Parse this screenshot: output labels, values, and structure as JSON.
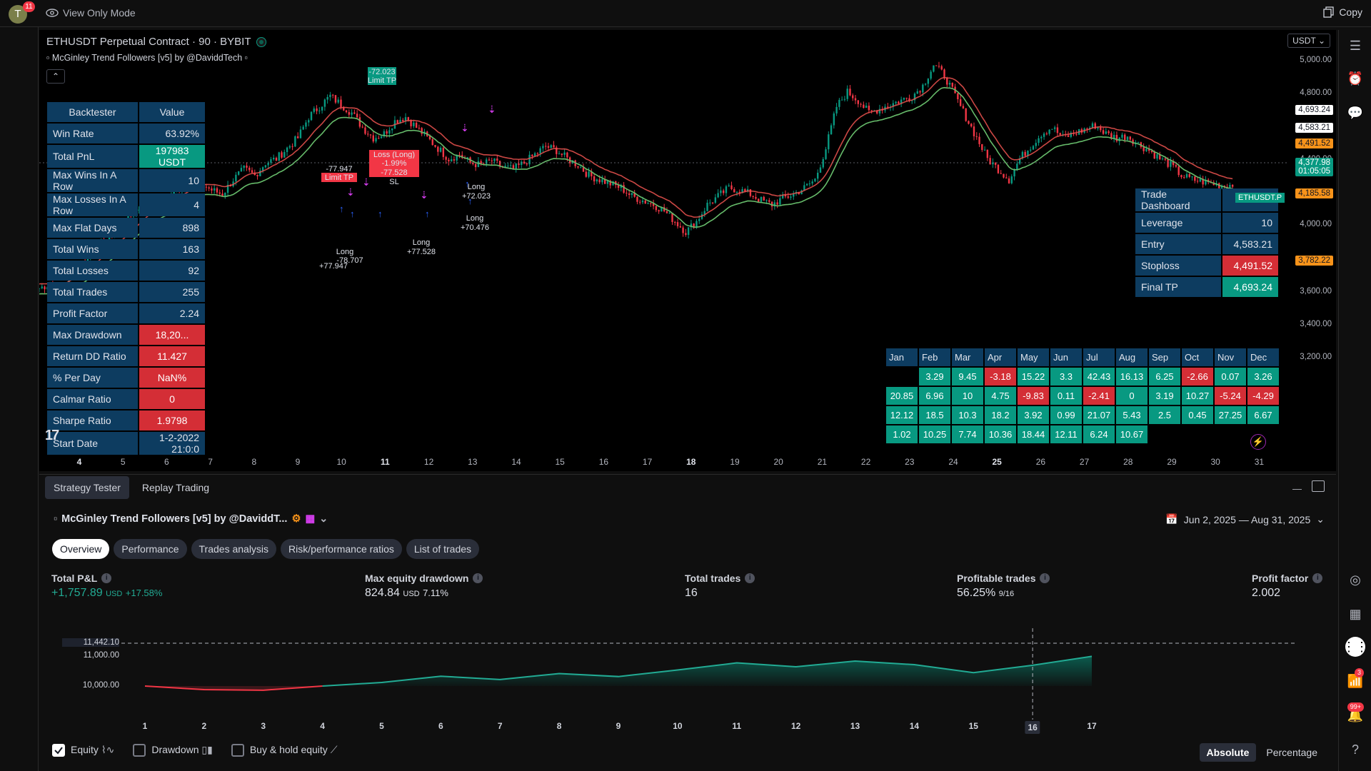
{
  "topbar": {
    "avatar_letter": "T",
    "avatar_badge": "11",
    "view_mode": "View Only Mode",
    "copy_label": "Copy"
  },
  "chart": {
    "symbol_title": "ETHUSDT Perpetual Contract · 90 · BYBIT",
    "indicator": "McGinley Trend Followers [v5] by @DaviddTech",
    "currency": "USDT",
    "price_labels": [
      "5,000.00",
      "4,800.00",
      "4,400.00",
      "4,000.00",
      "3,600.00",
      "3,400.00",
      "3,200.00"
    ],
    "price_tags": [
      {
        "text": "4,693.24",
        "bg": "#ffffff",
        "fg": "#131722"
      },
      {
        "text": "4,583.21",
        "bg": "#ffffff",
        "fg": "#131722"
      },
      {
        "text": "4,491.52",
        "bg": "#f7931a",
        "fg": "#131722"
      },
      {
        "text": "4,377.98",
        "bg": "#089981",
        "fg": "#ffffff"
      },
      {
        "text": "01:05:05",
        "bg": "#089981",
        "fg": "#ffffff"
      },
      {
        "text": "4,185.58",
        "bg": "#f7931a",
        "fg": "#131722"
      },
      {
        "text": "3,782.22",
        "bg": "#f7931a",
        "fg": "#131722"
      }
    ],
    "symbol_tag": "ETHUSDT.P",
    "x_ticks": [
      {
        "t": "4",
        "b": true
      },
      {
        "t": "5"
      },
      {
        "t": "6"
      },
      {
        "t": "7"
      },
      {
        "t": "8"
      },
      {
        "t": "9"
      },
      {
        "t": "10"
      },
      {
        "t": "11",
        "b": true
      },
      {
        "t": "12"
      },
      {
        "t": "13"
      },
      {
        "t": "14"
      },
      {
        "t": "15"
      },
      {
        "t": "16"
      },
      {
        "t": "17"
      },
      {
        "t": "18",
        "b": true
      },
      {
        "t": "19"
      },
      {
        "t": "20"
      },
      {
        "t": "21"
      },
      {
        "t": "22"
      },
      {
        "t": "23"
      },
      {
        "t": "24"
      },
      {
        "t": "25",
        "b": true
      },
      {
        "t": "26"
      },
      {
        "t": "27"
      },
      {
        "t": "28"
      },
      {
        "t": "29"
      },
      {
        "t": "30"
      },
      {
        "t": "31"
      }
    ],
    "trade_labels": [
      "-72.023",
      "Limit TP",
      "Loss (Long)",
      "-1.99%",
      "-77.528",
      "SL",
      "-77.947",
      "Limit TP",
      "Long",
      "+77.528",
      "Long",
      "+72.023",
      "Long",
      "-78.707",
      "+77.947",
      "Long",
      "+70.476"
    ],
    "backtester": {
      "headers": [
        "Backtester",
        "Value"
      ],
      "rows": [
        {
          "k": "Win Rate",
          "v": "63.92%",
          "c": "navy"
        },
        {
          "k": "Total PnL",
          "v": "197983 USDT",
          "c": "teal"
        },
        {
          "k": "Max Wins In A Row",
          "v": "10",
          "c": "navy"
        },
        {
          "k": "Max Losses In A Row",
          "v": "4",
          "c": "navy"
        },
        {
          "k": "Max Flat Days",
          "v": "898",
          "c": "navy"
        },
        {
          "k": "Total Wins",
          "v": "163",
          "c": "navy"
        },
        {
          "k": "Total Losses",
          "v": "92",
          "c": "navy"
        },
        {
          "k": "Total Trades",
          "v": "255",
          "c": "navy"
        },
        {
          "k": "Profit Factor",
          "v": "2.24",
          "c": "navy"
        },
        {
          "k": "Max Drawdown",
          "v": "18,20...",
          "c": "red"
        },
        {
          "k": "Return DD Ratio",
          "v": "11.427",
          "c": "red"
        },
        {
          "k": "% Per Day",
          "v": "NaN%",
          "c": "red"
        },
        {
          "k": "Calmar Ratio",
          "v": "0",
          "c": "red"
        },
        {
          "k": "Sharpe Ratio",
          "v": "1.9798",
          "c": "red"
        },
        {
          "k": "Start Date",
          "v": "1-2-2022 21:0:0",
          "c": "navy"
        }
      ]
    },
    "trade_dashboard": {
      "title": "Trade Dashboard",
      "rows": [
        {
          "k": "Leverage",
          "v": "10",
          "c": "navy"
        },
        {
          "k": "Entry",
          "v": "4,583.21",
          "c": "navy"
        },
        {
          "k": "Stoploss",
          "v": "4,491.52",
          "c": "red"
        },
        {
          "k": "Final TP",
          "v": "4,693.24",
          "c": "teal"
        }
      ]
    },
    "monthly": {
      "headers": [
        "Jan",
        "Feb",
        "Mar",
        "Apr",
        "May",
        "Jun",
        "Jul",
        "Aug",
        "Sep",
        "Oct",
        "Nov",
        "Dec"
      ],
      "rows": [
        [
          "",
          "3.29",
          "9.45",
          "-3.18",
          "15.22",
          "3.3",
          "42.43",
          "16.13",
          "6.25",
          "-2.66",
          "0.07",
          "3.26"
        ],
        [
          "20.85",
          "6.96",
          "10",
          "4.75",
          "-9.83",
          "0.11",
          "-2.41",
          "0",
          "3.19",
          "10.27",
          "-5.24",
          "-4.29"
        ],
        [
          "12.12",
          "18.5",
          "10.3",
          "18.2",
          "3.92",
          "0.99",
          "21.07",
          "5.43",
          "2.5",
          "0.45",
          "27.25",
          "6.67"
        ],
        [
          "1.02",
          "10.25",
          "7.74",
          "10.36",
          "18.44",
          "12.11",
          "6.24",
          "10.67",
          "",
          "",
          "",
          ""
        ]
      ]
    },
    "candle_series": [
      3880,
      3900,
      3870,
      3950,
      4000,
      4050,
      4100,
      4150,
      4200,
      4250,
      4300,
      4280,
      4320,
      4360,
      4400,
      4380,
      4350,
      4330,
      4400,
      4450,
      4420,
      4480,
      4500,
      4550,
      4600,
      4700,
      4750,
      4800,
      4760,
      4720,
      4650,
      4600,
      4620,
      4680,
      4700,
      4650,
      4600,
      4550,
      4500,
      4520,
      4480,
      4470,
      4490,
      4460,
      4450,
      4480,
      4520,
      4560,
      4540,
      4500,
      4470,
      4420,
      4400,
      4380,
      4360,
      4320,
      4300,
      4280,
      4250,
      4200,
      4150,
      4200,
      4280,
      4320,
      4360,
      4350,
      4330,
      4300,
      4280,
      4310,
      4330,
      4360,
      4400,
      4550,
      4750,
      4820,
      4780,
      4720,
      4740,
      4760,
      4780,
      4800,
      4850,
      4950,
      4900,
      4800,
      4700,
      4600,
      4500,
      4450,
      4400,
      4500,
      4560,
      4620,
      4650,
      4600,
      4620,
      4640,
      4660,
      4620,
      4600,
      4610,
      4570,
      4540,
      4500,
      4470,
      4420,
      4400,
      4390,
      4380,
      4370,
      4378
    ]
  },
  "bottom": {
    "tabs": [
      "Strategy Tester",
      "Replay Trading"
    ],
    "strategy_name": "McGinley Trend Followers [v5] by @DaviddT...",
    "date_range": "Jun 2, 2025 — Aug 31, 2025",
    "sub_tabs": [
      "Overview",
      "Performance",
      "Trades analysis",
      "Risk/performance ratios",
      "List of trades"
    ],
    "metrics": [
      {
        "label": "Total P&L",
        "value": "+1,757.89",
        "unit": "USD",
        "extra": "+17.58%",
        "color": "#22ab94"
      },
      {
        "label": "Max equity drawdown",
        "value": "824.84",
        "unit": "USD",
        "extra": "7.11%",
        "color": "#e0e3eb"
      },
      {
        "label": "Total trades",
        "value": "16",
        "unit": "",
        "extra": "",
        "color": "#e0e3eb"
      },
      {
        "label": "Profitable trades",
        "value": "56.25%",
        "unit": "9/16",
        "extra": "",
        "color": "#e0e3eb"
      },
      {
        "label": "Profit factor",
        "value": "2.002",
        "unit": "",
        "extra": "",
        "color": "#e0e3eb"
      }
    ],
    "legend": [
      {
        "label": "Equity",
        "checked": true
      },
      {
        "label": "Drawdown",
        "checked": false
      },
      {
        "label": "Buy & hold equity",
        "checked": false
      }
    ],
    "modes": [
      "Absolute",
      "Percentage"
    ]
  },
  "chart_data": {
    "type": "area",
    "x": [
      1,
      2,
      3,
      4,
      5,
      6,
      7,
      8,
      9,
      10,
      11,
      12,
      13,
      14,
      15,
      16,
      17
    ],
    "values": [
      10000,
      9880,
      9860,
      10000,
      10120,
      10330,
      10220,
      10420,
      10320,
      10540,
      10780,
      10650,
      10840,
      10720,
      10450,
      10700,
      11000
    ],
    "y_labels": [
      "11,442.10",
      "11,000.00",
      "10,000.00"
    ],
    "highlight_x": "16"
  }
}
